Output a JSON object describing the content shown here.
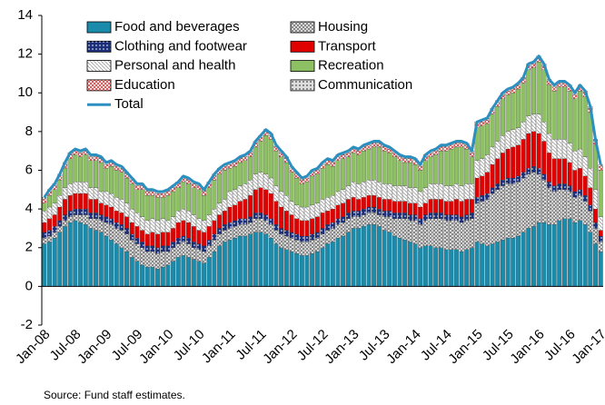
{
  "chart_data": {
    "type": "stacked_bar",
    "source": "Source: Fund staff estimates.",
    "categories": [
      "Jan-08",
      null,
      null,
      null,
      null,
      null,
      "Jul-08",
      null,
      null,
      null,
      null,
      null,
      "Jan-09",
      null,
      null,
      null,
      null,
      null,
      "Jul-09",
      null,
      null,
      null,
      null,
      null,
      "Jan-10",
      null,
      null,
      null,
      null,
      null,
      "Jul-10",
      null,
      null,
      null,
      null,
      null,
      "Jan-11",
      null,
      null,
      null,
      null,
      null,
      "Jul-11",
      null,
      null,
      null,
      null,
      null,
      "Jan-12",
      null,
      null,
      null,
      null,
      null,
      "Jul-12",
      null,
      null,
      null,
      null,
      null,
      "Jan-13",
      null,
      null,
      null,
      null,
      null,
      "Jul-13",
      null,
      null,
      null,
      null,
      null,
      "Jan-14",
      null,
      null,
      null,
      null,
      null,
      "Jul-14",
      null,
      null,
      null,
      null,
      null,
      "Jan-15",
      null,
      null,
      null,
      null,
      null,
      "Jul-15",
      null,
      null,
      null,
      null,
      null,
      "Jan-16",
      null,
      null,
      null,
      null,
      null,
      "Jul-16",
      null,
      null,
      null,
      null,
      null,
      "Jan-17"
    ],
    "series": [
      {
        "name": "Food and beverages",
        "color": "#1b8bac",
        "values": [
          2.2,
          2.3,
          2.5,
          2.8,
          3.1,
          3.3,
          3.4,
          3.3,
          3.2,
          3.0,
          2.9,
          2.8,
          2.6,
          2.4,
          2.2,
          2.0,
          1.8,
          1.5,
          1.3,
          1.1,
          1.0,
          1.0,
          0.9,
          1.0,
          1.1,
          1.3,
          1.5,
          1.6,
          1.5,
          1.4,
          1.3,
          1.2,
          1.5,
          1.8,
          2.1,
          2.3,
          2.4,
          2.5,
          2.6,
          2.6,
          2.7,
          2.8,
          2.8,
          2.7,
          2.5,
          2.2,
          2.0,
          1.9,
          1.8,
          1.7,
          1.6,
          1.6,
          1.7,
          1.8,
          2.0,
          2.2,
          2.3,
          2.5,
          2.6,
          2.8,
          3.0,
          3.0,
          3.1,
          3.2,
          3.2,
          3.1,
          2.9,
          2.8,
          2.6,
          2.5,
          2.4,
          2.3,
          2.2,
          2.0,
          2.1,
          2.1,
          2.0,
          2.0,
          1.9,
          1.9,
          1.9,
          1.8,
          1.9,
          2.0,
          2.3,
          2.2,
          2.1,
          2.2,
          2.3,
          2.4,
          2.5,
          2.5,
          2.6,
          2.8,
          3.0,
          3.1,
          3.3,
          3.3,
          3.2,
          3.2,
          3.4,
          3.5,
          3.5,
          3.3,
          3.4,
          3.2,
          2.8,
          2.2,
          1.8
        ]
      },
      {
        "name": "Housing",
        "color": "#808080",
        "values": [
          0.3,
          0.3,
          0.3,
          0.3,
          0.3,
          0.3,
          0.3,
          0.4,
          0.5,
          0.5,
          0.6,
          0.6,
          0.7,
          0.8,
          0.8,
          0.9,
          0.9,
          0.9,
          0.9,
          0.9,
          0.8,
          0.8,
          0.8,
          0.8,
          0.7,
          0.7,
          0.7,
          0.7,
          0.7,
          0.6,
          0.6,
          0.6,
          0.6,
          0.6,
          0.6,
          0.6,
          0.6,
          0.6,
          0.6,
          0.6,
          0.6,
          0.7,
          0.7,
          0.7,
          0.7,
          0.7,
          0.7,
          0.7,
          0.7,
          0.7,
          0.7,
          0.7,
          0.7,
          0.7,
          0.7,
          0.7,
          0.7,
          0.7,
          0.7,
          0.7,
          0.6,
          0.6,
          0.6,
          0.6,
          0.6,
          0.6,
          0.7,
          0.8,
          0.9,
          1.0,
          1.1,
          1.1,
          1.2,
          1.2,
          1.3,
          1.4,
          1.5,
          1.5,
          1.5,
          1.5,
          1.5,
          1.5,
          1.5,
          1.5,
          2.0,
          2.2,
          2.4,
          2.6,
          2.7,
          2.8,
          2.8,
          2.8,
          2.8,
          2.8,
          2.8,
          2.8,
          2.5,
          2.2,
          1.9,
          1.7,
          1.6,
          1.5,
          1.4,
          1.3,
          1.3,
          1.2,
          1.1,
          0.8,
          0.5
        ]
      },
      {
        "name": "Clothing and footwear",
        "color": "#1c2f7a",
        "values": [
          0.3,
          0.3,
          0.3,
          0.3,
          0.3,
          0.3,
          0.3,
          0.3,
          0.3,
          0.3,
          0.3,
          0.3,
          0.3,
          0.3,
          0.3,
          0.3,
          0.3,
          0.3,
          0.3,
          0.3,
          0.3,
          0.3,
          0.3,
          0.3,
          0.3,
          0.3,
          0.3,
          0.3,
          0.3,
          0.3,
          0.3,
          0.3,
          0.3,
          0.3,
          0.3,
          0.3,
          0.3,
          0.3,
          0.3,
          0.3,
          0.3,
          0.3,
          0.3,
          0.3,
          0.3,
          0.3,
          0.3,
          0.3,
          0.3,
          0.3,
          0.3,
          0.3,
          0.3,
          0.3,
          0.3,
          0.3,
          0.3,
          0.3,
          0.3,
          0.3,
          0.3,
          0.3,
          0.3,
          0.3,
          0.3,
          0.3,
          0.3,
          0.3,
          0.3,
          0.3,
          0.3,
          0.3,
          0.3,
          0.3,
          0.3,
          0.3,
          0.3,
          0.3,
          0.3,
          0.3,
          0.3,
          0.3,
          0.3,
          0.3,
          0.3,
          0.3,
          0.3,
          0.3,
          0.3,
          0.3,
          0.3,
          0.3,
          0.3,
          0.3,
          0.3,
          0.3,
          0.3,
          0.3,
          0.3,
          0.3,
          0.3,
          0.3,
          0.3,
          0.3,
          0.3,
          0.3,
          0.3,
          0.3,
          0.3
        ]
      },
      {
        "name": "Transport",
        "color": "#e00000",
        "values": [
          0.5,
          0.6,
          0.6,
          0.7,
          0.8,
          0.8,
          0.8,
          0.8,
          0.8,
          0.7,
          0.7,
          0.6,
          0.6,
          0.6,
          0.6,
          0.6,
          0.6,
          0.6,
          0.6,
          0.6,
          0.6,
          0.7,
          0.7,
          0.7,
          0.7,
          0.7,
          0.8,
          0.8,
          0.8,
          0.8,
          0.7,
          0.7,
          0.7,
          0.7,
          0.7,
          0.7,
          0.8,
          0.8,
          0.9,
          1.0,
          1.1,
          1.2,
          1.3,
          1.3,
          1.3,
          1.2,
          1.1,
          1.0,
          0.9,
          0.8,
          0.8,
          0.8,
          0.8,
          0.8,
          0.8,
          0.7,
          0.7,
          0.7,
          0.7,
          0.7,
          0.7,
          0.6,
          0.6,
          0.6,
          0.6,
          0.6,
          0.6,
          0.6,
          0.6,
          0.6,
          0.6,
          0.6,
          0.6,
          0.6,
          0.6,
          0.7,
          0.7,
          0.7,
          0.7,
          0.7,
          0.8,
          0.8,
          0.8,
          0.7,
          1.0,
          1.0,
          1.1,
          1.2,
          1.3,
          1.4,
          1.5,
          1.6,
          1.6,
          1.7,
          1.8,
          1.8,
          1.8,
          1.7,
          1.5,
          1.4,
          1.3,
          1.3,
          1.2,
          1.1,
          1.1,
          1.0,
          0.9,
          0.7,
          0.3
        ]
      },
      {
        "name": "Personal and health",
        "color": "#a0a0a0",
        "values": [
          0.6,
          0.6,
          0.6,
          0.6,
          0.6,
          0.6,
          0.6,
          0.6,
          0.6,
          0.6,
          0.6,
          0.6,
          0.7,
          0.7,
          0.7,
          0.7,
          0.7,
          0.7,
          0.7,
          0.7,
          0.7,
          0.7,
          0.7,
          0.7,
          0.6,
          0.6,
          0.6,
          0.6,
          0.6,
          0.6,
          0.6,
          0.6,
          0.6,
          0.6,
          0.6,
          0.6,
          0.8,
          0.8,
          0.8,
          0.8,
          0.8,
          0.8,
          0.8,
          0.8,
          0.8,
          0.8,
          0.8,
          0.8,
          0.7,
          0.7,
          0.7,
          0.7,
          0.7,
          0.7,
          0.7,
          0.7,
          0.7,
          0.7,
          0.7,
          0.7,
          0.8,
          0.8,
          0.8,
          0.8,
          0.8,
          0.8,
          0.8,
          0.8,
          0.8,
          0.8,
          0.8,
          0.8,
          0.8,
          0.8,
          0.8,
          0.8,
          0.8,
          0.8,
          0.8,
          0.8,
          0.8,
          0.8,
          0.8,
          0.8,
          0.9,
          0.9,
          0.9,
          0.9,
          0.9,
          0.9,
          0.9,
          0.9,
          0.9,
          0.9,
          0.9,
          0.9,
          1.0,
          1.0,
          1.0,
          1.0,
          1.0,
          1.0,
          1.0,
          1.0,
          1.0,
          1.0,
          1.0,
          1.0,
          0.7
        ]
      },
      {
        "name": "Recreation",
        "color": "#8cc063",
        "values": [
          0.4,
          0.6,
          0.7,
          0.8,
          1.0,
          1.3,
          1.4,
          1.3,
          1.4,
          1.4,
          1.4,
          1.5,
          1.2,
          1.4,
          1.4,
          1.4,
          1.3,
          1.3,
          1.2,
          1.4,
          1.3,
          1.2,
          1.2,
          1.1,
          1.3,
          1.3,
          1.2,
          1.4,
          1.4,
          1.4,
          1.5,
          1.3,
          1.4,
          1.5,
          1.5,
          1.5,
          1.2,
          1.2,
          1.2,
          1.2,
          1.2,
          1.4,
          1.6,
          2.0,
          2.0,
          1.8,
          1.8,
          1.7,
          1.5,
          1.4,
          1.2,
          1.3,
          1.5,
          1.5,
          1.6,
          1.7,
          1.5,
          1.6,
          1.6,
          1.5,
          1.5,
          1.5,
          1.6,
          1.6,
          1.7,
          1.8,
          1.7,
          1.6,
          1.5,
          1.3,
          1.2,
          1.3,
          1.2,
          1.1,
          1.4,
          1.4,
          1.5,
          1.7,
          1.8,
          1.9,
          1.9,
          2.0,
          1.8,
          1.4,
          1.7,
          1.7,
          1.6,
          1.7,
          1.8,
          1.9,
          1.9,
          1.9,
          2.0,
          2.0,
          2.4,
          2.4,
          2.7,
          2.7,
          2.5,
          2.5,
          2.7,
          2.7,
          2.7,
          2.7,
          3.0,
          3.1,
          2.9,
          2.3,
          2.4
        ]
      },
      {
        "name": "Education",
        "color": "#e02020",
        "values": [
          0.2,
          0.2,
          0.2,
          0.2,
          0.2,
          0.2,
          0.2,
          0.2,
          0.2,
          0.2,
          0.2,
          0.2,
          0.2,
          0.2,
          0.2,
          0.2,
          0.2,
          0.2,
          0.2,
          0.2,
          0.2,
          0.2,
          0.2,
          0.2,
          0.2,
          0.2,
          0.2,
          0.2,
          0.2,
          0.2,
          0.2,
          0.2,
          0.2,
          0.2,
          0.2,
          0.2,
          0.2,
          0.2,
          0.2,
          0.2,
          0.2,
          0.2,
          0.2,
          0.2,
          0.2,
          0.2,
          0.2,
          0.2,
          0.2,
          0.2,
          0.2,
          0.2,
          0.2,
          0.2,
          0.2,
          0.2,
          0.2,
          0.2,
          0.2,
          0.2,
          0.2,
          0.2,
          0.2,
          0.2,
          0.2,
          0.2,
          0.2,
          0.2,
          0.2,
          0.2,
          0.2,
          0.2,
          0.2,
          0.2,
          0.2,
          0.2,
          0.2,
          0.2,
          0.2,
          0.2,
          0.2,
          0.2,
          0.2,
          0.2,
          0.2,
          0.2,
          0.2,
          0.2,
          0.2,
          0.2,
          0.2,
          0.2,
          0.2,
          0.2,
          0.2,
          0.2,
          0.2,
          0.2,
          0.2,
          0.2,
          0.2,
          0.2,
          0.2,
          0.2,
          0.2,
          0.2,
          0.2,
          0.2,
          0.2
        ]
      },
      {
        "name": "Communication",
        "color": "#707070",
        "values": [
          0.1,
          0.1,
          0.1,
          0.1,
          0.1,
          0.1,
          0.1,
          0.1,
          0.1,
          0.1,
          0.1,
          0.1,
          0.1,
          0.1,
          0.1,
          0.1,
          0.1,
          0.1,
          0.1,
          0.1,
          0.1,
          0.1,
          0.1,
          0.1,
          0.1,
          0.1,
          0.1,
          0.1,
          0.1,
          0.1,
          0.1,
          0.1,
          0.1,
          0.1,
          0.1,
          0.1,
          0.1,
          0.1,
          0.1,
          0.1,
          0.1,
          0.1,
          0.1,
          0.1,
          0.1,
          0.1,
          0.1,
          0.1,
          0.1,
          0.1,
          0.1,
          0.1,
          0.1,
          0.1,
          0.1,
          0.1,
          0.1,
          0.1,
          0.1,
          0.1,
          0.1,
          0.1,
          0.1,
          0.1,
          0.1,
          0.1,
          0.1,
          0.1,
          0.1,
          0.1,
          0.1,
          0.1,
          0.1,
          0.1,
          0.1,
          0.1,
          0.1,
          0.1,
          0.1,
          0.1,
          0.1,
          0.1,
          0.1,
          0.1,
          0.1,
          0.1,
          0.1,
          0.1,
          0.1,
          0.1,
          0.1,
          0.1,
          0.1,
          0.1,
          0.1,
          0.1,
          0.1,
          0.1,
          0.1,
          0.1,
          0.1,
          0.1,
          0.1,
          0.1,
          0.1,
          0.1,
          0.1,
          0.1,
          0.1
        ]
      }
    ],
    "total": {
      "name": "Total",
      "color": "#2b8fc0",
      "values": [
        4.6,
        5.0,
        5.3,
        5.8,
        6.4,
        6.9,
        7.1,
        7.0,
        7.1,
        6.8,
        6.8,
        6.7,
        6.4,
        6.5,
        6.3,
        6.2,
        5.9,
        5.6,
        5.3,
        5.3,
        5.0,
        5.0,
        4.9,
        4.9,
        5.0,
        5.2,
        5.4,
        5.7,
        5.6,
        5.4,
        5.3,
        5.0,
        5.4,
        5.8,
        6.1,
        6.3,
        6.4,
        6.5,
        6.7,
        6.8,
        7.0,
        7.5,
        7.8,
        8.1,
        7.9,
        7.3,
        7.0,
        6.7,
        6.2,
        5.9,
        5.6,
        5.7,
        6.0,
        6.1,
        6.4,
        6.6,
        6.5,
        6.8,
        6.9,
        7.0,
        7.2,
        7.1,
        7.3,
        7.4,
        7.5,
        7.5,
        7.3,
        7.2,
        7.0,
        6.8,
        6.7,
        6.7,
        6.6,
        6.3,
        6.8,
        7.0,
        7.1,
        7.3,
        7.3,
        7.4,
        7.5,
        7.5,
        7.4,
        7.0,
        8.5,
        8.6,
        8.7,
        9.2,
        9.6,
        10.0,
        10.2,
        10.3,
        10.5,
        10.8,
        11.5,
        11.6,
        11.9,
        11.5,
        10.7,
        10.4,
        10.6,
        10.6,
        10.4,
        10.0,
        10.4,
        10.1,
        9.3,
        7.6,
        6.3
      ]
    },
    "ylim": [
      -2,
      14
    ],
    "yticks": [
      -2,
      0,
      2,
      4,
      6,
      8,
      10,
      12,
      14
    ],
    "legend": "top-left"
  }
}
